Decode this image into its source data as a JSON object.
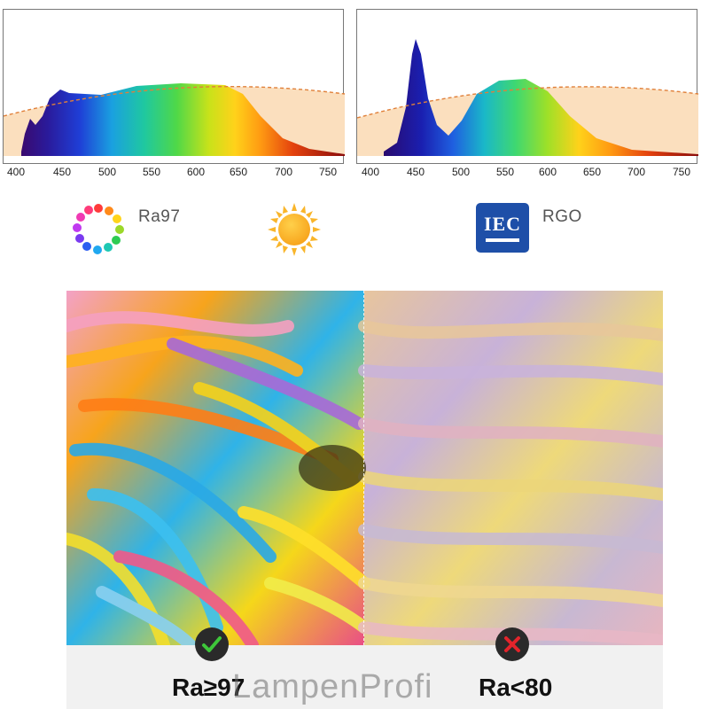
{
  "spectrum_charts": [
    {
      "name": "full-spectrum",
      "ticks": [
        "400",
        "450",
        "500",
        "550",
        "600",
        "650",
        "700",
        "750"
      ]
    },
    {
      "name": "rgb-spectrum",
      "ticks": [
        "400",
        "450",
        "500",
        "550",
        "600",
        "650",
        "700",
        "750"
      ]
    }
  ],
  "features": {
    "ra_label": "Ra97",
    "sun_icon": "sun-icon",
    "iec_logo_text": "IEC",
    "rgo_label": "RGO"
  },
  "comparison": {
    "good_label": "Ra≥97",
    "bad_label": "Ra<80",
    "good_icon": "checkmark-icon",
    "bad_icon": "cross-icon"
  },
  "watermark": "LampenProfi"
}
